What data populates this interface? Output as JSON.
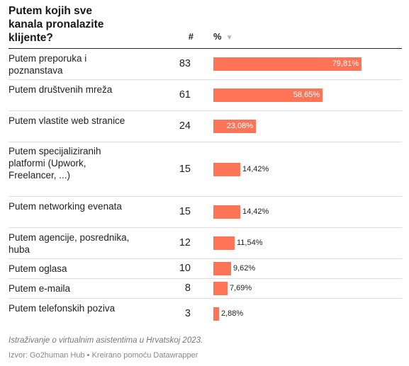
{
  "header": {
    "title": "Putem kojih sve kanala pronalazite klijente?",
    "count_header": "#",
    "pct_header": "%",
    "sort_icon": "▼"
  },
  "rows": [
    {
      "label": "Putem preporuka i poznanstava",
      "count": "83",
      "value": 79.81,
      "pct_label": "79,81%"
    },
    {
      "label": "Putem društvenih mreža",
      "count": "61",
      "value": 58.65,
      "pct_label": "58,65%"
    },
    {
      "label": "Putem vlastite web stranice",
      "count": "24",
      "value": 23.08,
      "pct_label": "23,08%"
    },
    {
      "label": "Putem specijaliziranih platformi (Upwork, Freelancer, ...)",
      "count": "15",
      "value": 14.42,
      "pct_label": "14,42%"
    },
    {
      "label": "Putem networking evenata",
      "count": "15",
      "value": 14.42,
      "pct_label": "14,42%"
    },
    {
      "label": "Putem agencije, posrednika, huba",
      "count": "12",
      "value": 11.54,
      "pct_label": "11,54%"
    },
    {
      "label": "Putem oglasa",
      "count": "10",
      "value": 9.62,
      "pct_label": "9,62%"
    },
    {
      "label": "Putem e-maila",
      "count": "8",
      "value": 7.69,
      "pct_label": "7,69%"
    },
    {
      "label": "Putem telefonskih poziva",
      "count": "3",
      "value": 2.88,
      "pct_label": "2,88%"
    }
  ],
  "footer": {
    "note": "Istraživanje o virtualnim asistentima u Hrvatskoj 2023.",
    "source": "Izvor: Go2human Hub • Kreirano pomoću Datawrapper"
  },
  "chart_data": {
    "type": "table",
    "title": "Putem kojih sve kanala pronalazite klijente?",
    "columns": [
      "#",
      "%"
    ],
    "categories": [
      "Putem preporuka i poznanstava",
      "Putem društvenih mreža",
      "Putem vlastite web stranice",
      "Putem specijaliziranih platformi (Upwork, Freelancer, ...)",
      "Putem networking evenata",
      "Putem agencije, posrednika, huba",
      "Putem oglasa",
      "Putem e-maila",
      "Putem telefonskih poziva"
    ],
    "counts": [
      83,
      61,
      24,
      15,
      15,
      12,
      10,
      8,
      3
    ],
    "values": [
      79.81,
      58.65,
      23.08,
      14.42,
      14.42,
      11.54,
      9.62,
      7.69,
      2.88
    ],
    "bar_color": "#ff7457",
    "sorted_by": "%",
    "sort_order": "descending"
  }
}
